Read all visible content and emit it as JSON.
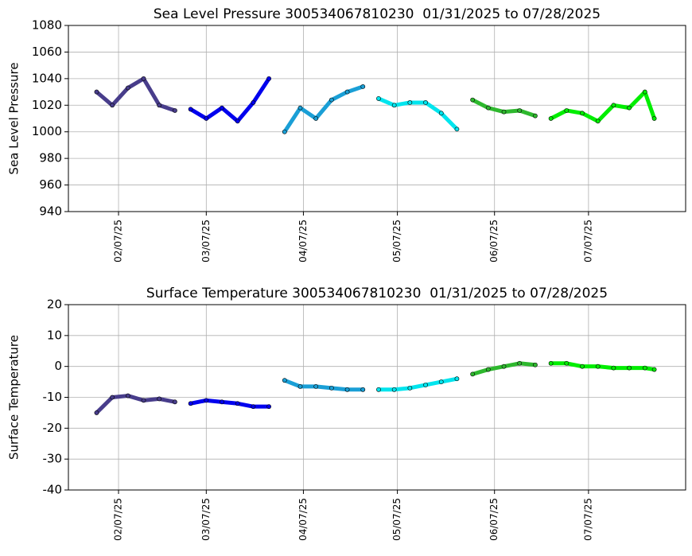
{
  "chart_data": [
    {
      "type": "line",
      "title": "Sea Level Pressure 300534067810230  01/31/2025 to 07/28/2025",
      "ylabel": "Sea Level Pressure",
      "xlim": [
        "2025-01-22",
        "2025-08-07"
      ],
      "xticks": [
        {
          "value": "2025-02-07",
          "label": "02/07/25"
        },
        {
          "value": "2025-03-07",
          "label": "03/07/25"
        },
        {
          "value": "2025-04-07",
          "label": "04/07/25"
        },
        {
          "value": "2025-05-07",
          "label": "05/07/25"
        },
        {
          "value": "2025-06-07",
          "label": "06/07/25"
        },
        {
          "value": "2025-07-07",
          "label": "07/07/25"
        }
      ],
      "ylim": [
        940,
        1080
      ],
      "yticks": [
        940,
        960,
        980,
        1000,
        1020,
        1040,
        1060,
        1080
      ],
      "grid": true,
      "series": [
        {
          "color": "#483d8b",
          "x": [
            "2025-01-31",
            "2025-02-05",
            "2025-02-10",
            "2025-02-15",
            "2025-02-20",
            "2025-02-25"
          ],
          "values": [
            1030,
            1020,
            1033,
            1040,
            1020,
            1016
          ]
        },
        {
          "color": "#0000ee",
          "x": [
            "2025-03-02",
            "2025-03-07",
            "2025-03-12",
            "2025-03-17",
            "2025-03-22",
            "2025-03-27"
          ],
          "values": [
            1017,
            1010,
            1018,
            1008,
            1022,
            1040
          ]
        },
        {
          "color": "#1a9fd6",
          "x": [
            "2025-04-01",
            "2025-04-06",
            "2025-04-11",
            "2025-04-16",
            "2025-04-21",
            "2025-04-26"
          ],
          "values": [
            1000,
            1018,
            1010,
            1024,
            1030,
            1034
          ]
        },
        {
          "color": "#00e5ee",
          "x": [
            "2025-05-01",
            "2025-05-06",
            "2025-05-11",
            "2025-05-16",
            "2025-05-21",
            "2025-05-26"
          ],
          "values": [
            1025,
            1020,
            1022,
            1022,
            1014,
            1002
          ]
        },
        {
          "color": "#2eb82e",
          "x": [
            "2025-05-31",
            "2025-06-05",
            "2025-06-10",
            "2025-06-15",
            "2025-06-20"
          ],
          "values": [
            1024,
            1018,
            1015,
            1016,
            1012
          ]
        },
        {
          "color": "#00ee00",
          "x": [
            "2025-06-25",
            "2025-06-30",
            "2025-07-05",
            "2025-07-10",
            "2025-07-15",
            "2025-07-20",
            "2025-07-25",
            "2025-07-28"
          ],
          "values": [
            1010,
            1016,
            1014,
            1008,
            1020,
            1018,
            1030,
            1010
          ]
        }
      ]
    },
    {
      "type": "line",
      "title": "Surface Temperature 300534067810230  01/31/2025 to 07/28/2025",
      "ylabel": "Surface Temperature",
      "xlim": [
        "2025-01-22",
        "2025-08-07"
      ],
      "xticks": [
        {
          "value": "2025-02-07",
          "label": "02/07/25"
        },
        {
          "value": "2025-03-07",
          "label": "03/07/25"
        },
        {
          "value": "2025-04-07",
          "label": "04/07/25"
        },
        {
          "value": "2025-05-07",
          "label": "05/07/25"
        },
        {
          "value": "2025-06-07",
          "label": "06/07/25"
        },
        {
          "value": "2025-07-07",
          "label": "07/07/25"
        }
      ],
      "ylim": [
        -40,
        20
      ],
      "yticks": [
        -40,
        -30,
        -20,
        -10,
        0,
        10,
        20
      ],
      "grid": true,
      "series": [
        {
          "color": "#483d8b",
          "x": [
            "2025-01-31",
            "2025-02-05",
            "2025-02-10",
            "2025-02-15",
            "2025-02-20",
            "2025-02-25"
          ],
          "values": [
            -15,
            -10,
            -9.5,
            -11,
            -10.5,
            -11.5
          ]
        },
        {
          "color": "#0000ee",
          "x": [
            "2025-03-02",
            "2025-03-07",
            "2025-03-12",
            "2025-03-17",
            "2025-03-22",
            "2025-03-27"
          ],
          "values": [
            -12,
            -11,
            -11.5,
            -12,
            -13,
            -13
          ]
        },
        {
          "color": "#1a9fd6",
          "x": [
            "2025-04-01",
            "2025-04-06",
            "2025-04-11",
            "2025-04-16",
            "2025-04-21",
            "2025-04-26"
          ],
          "values": [
            -4.5,
            -6.5,
            -6.5,
            -7,
            -7.5,
            -7.5
          ]
        },
        {
          "color": "#00e5ee",
          "x": [
            "2025-05-01",
            "2025-05-06",
            "2025-05-11",
            "2025-05-16",
            "2025-05-21",
            "2025-05-26"
          ],
          "values": [
            -7.5,
            -7.5,
            -7,
            -6,
            -5,
            -4
          ]
        },
        {
          "color": "#2eb82e",
          "x": [
            "2025-05-31",
            "2025-06-05",
            "2025-06-10",
            "2025-06-15",
            "2025-06-20"
          ],
          "values": [
            -2.5,
            -1,
            0,
            1,
            0.5
          ]
        },
        {
          "color": "#00ee00",
          "x": [
            "2025-06-25",
            "2025-06-30",
            "2025-07-05",
            "2025-07-10",
            "2025-07-15",
            "2025-07-20",
            "2025-07-25",
            "2025-07-28"
          ],
          "values": [
            1,
            1,
            0,
            0,
            -0.5,
            -0.5,
            -0.5,
            -1
          ]
        }
      ]
    }
  ]
}
